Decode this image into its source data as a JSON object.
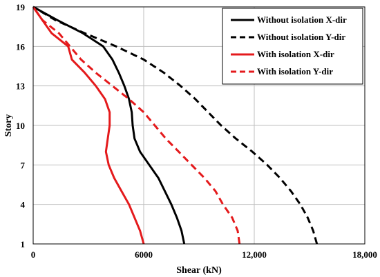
{
  "chart_data": {
    "type": "line",
    "title": "",
    "xlabel": "Shear (kN)",
    "ylabel": "Story",
    "xlim": [
      0,
      18000
    ],
    "ylim": [
      1,
      19
    ],
    "x_ticks": [
      0,
      6000,
      12000,
      18000
    ],
    "x_tick_labels": [
      "0",
      "6000",
      "12,000",
      "18,000"
    ],
    "y_ticks": [
      1,
      4,
      7,
      10,
      13,
      16,
      19
    ],
    "y_tick_labels": [
      "1",
      "4",
      "7",
      "10",
      "13",
      "16",
      "19"
    ],
    "grid": true,
    "legend_position": "top-right",
    "series": [
      {
        "name": "Without isolation X-dir",
        "color": "#000000",
        "dash": "solid",
        "points": [
          [
            8200,
            1
          ],
          [
            8050,
            2
          ],
          [
            7800,
            3
          ],
          [
            7500,
            4
          ],
          [
            7150,
            5
          ],
          [
            6800,
            6
          ],
          [
            6300,
            7
          ],
          [
            5800,
            8
          ],
          [
            5500,
            9
          ],
          [
            5400,
            10
          ],
          [
            5350,
            11
          ],
          [
            5200,
            12
          ],
          [
            4950,
            13
          ],
          [
            4650,
            14
          ],
          [
            4300,
            15
          ],
          [
            3800,
            16
          ],
          [
            2700,
            17
          ],
          [
            1300,
            18
          ],
          [
            0,
            19
          ]
        ]
      },
      {
        "name": "Without isolation Y-dir",
        "color": "#000000",
        "dash": "dashed",
        "points": [
          [
            15400,
            1
          ],
          [
            15200,
            2
          ],
          [
            14900,
            3
          ],
          [
            14500,
            4
          ],
          [
            14000,
            5
          ],
          [
            13400,
            6
          ],
          [
            12700,
            7
          ],
          [
            11900,
            8
          ],
          [
            11000,
            9
          ],
          [
            10200,
            10
          ],
          [
            9500,
            11
          ],
          [
            8800,
            12
          ],
          [
            8000,
            13
          ],
          [
            7100,
            14
          ],
          [
            6000,
            15
          ],
          [
            4500,
            16
          ],
          [
            2800,
            17
          ],
          [
            1200,
            18
          ],
          [
            0,
            19
          ]
        ]
      },
      {
        "name": "With isolation X-dir",
        "color": "#e41a1c",
        "dash": "solid",
        "points": [
          [
            6000,
            1
          ],
          [
            5800,
            2
          ],
          [
            5500,
            3
          ],
          [
            5200,
            4
          ],
          [
            4800,
            5
          ],
          [
            4400,
            6
          ],
          [
            4100,
            7
          ],
          [
            3950,
            8
          ],
          [
            4050,
            9
          ],
          [
            4150,
            10
          ],
          [
            4150,
            11
          ],
          [
            3900,
            12
          ],
          [
            3400,
            13
          ],
          [
            2800,
            14
          ],
          [
            2100,
            15
          ],
          [
            1900,
            16
          ],
          [
            1000,
            17
          ],
          [
            500,
            18
          ],
          [
            0,
            19
          ]
        ]
      },
      {
        "name": "With isolation Y-dir",
        "color": "#e41a1c",
        "dash": "dashed",
        "points": [
          [
            11200,
            1
          ],
          [
            11100,
            2
          ],
          [
            10800,
            3
          ],
          [
            10300,
            4
          ],
          [
            9900,
            5
          ],
          [
            9300,
            6
          ],
          [
            8600,
            7
          ],
          [
            7900,
            8
          ],
          [
            7200,
            9
          ],
          [
            6600,
            10
          ],
          [
            6000,
            11
          ],
          [
            5200,
            12
          ],
          [
            4300,
            13
          ],
          [
            3400,
            14
          ],
          [
            2600,
            15
          ],
          [
            2000,
            16
          ],
          [
            1400,
            17
          ],
          [
            500,
            18
          ],
          [
            0,
            19
          ]
        ]
      }
    ]
  }
}
